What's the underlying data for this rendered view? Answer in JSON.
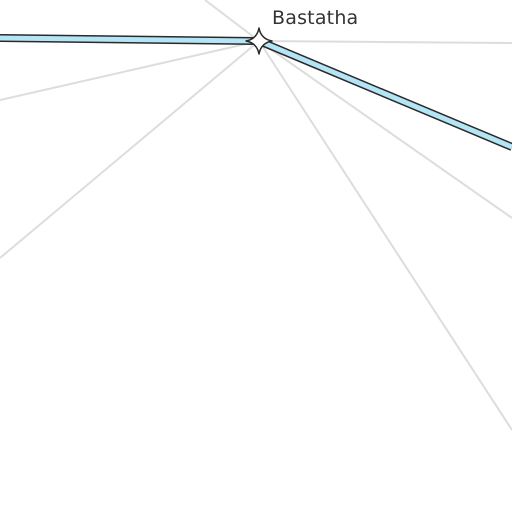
{
  "map": {
    "place": {
      "name": "Bastatha",
      "icon": "four-point-star-icon"
    },
    "colors": {
      "background": "#ffffff",
      "gridline": "#dddddd",
      "route_fill": "#b3e5f5",
      "route_outline": "#2a2a2a",
      "label": "#333333"
    }
  }
}
